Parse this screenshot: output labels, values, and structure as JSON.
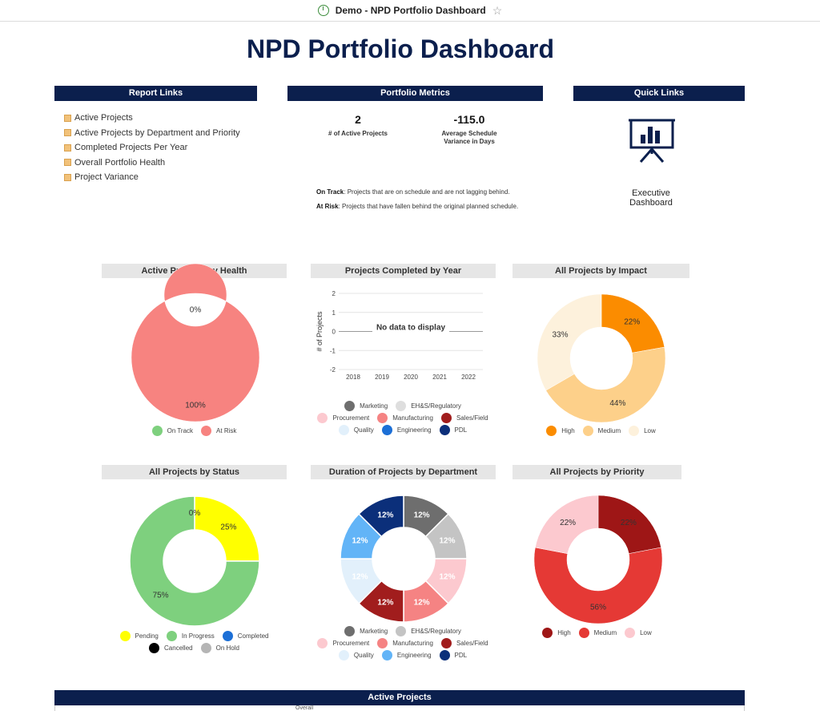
{
  "window": {
    "title": "Demo - NPD Portfolio Dashboard",
    "app_icon": "dashboard-app-icon",
    "star_icon": "star-outline-icon"
  },
  "page": {
    "title": "NPD Portfolio Dashboard"
  },
  "report_links": {
    "header": "Report Links",
    "items": [
      "Active Projects",
      "Active Projects by Department and Priority",
      "Completed Projects Per Year",
      "Overall Portfolio Health",
      "Project Variance"
    ]
  },
  "metrics": {
    "header": "Portfolio Metrics",
    "active_projects": {
      "value": "2",
      "label": "# of Active Projects"
    },
    "schedule_variance": {
      "value": "-115.0",
      "label_line1": "Average Schedule",
      "label_line2": "Variance in Days"
    },
    "definitions": [
      {
        "term": "On Track",
        "text": ": Projects that are on schedule and are not lagging behind."
      },
      {
        "term": "At Risk",
        "text": ": Projects that have fallen behind the original planned schedule."
      }
    ]
  },
  "quick_links": {
    "header": "Quick Links",
    "label_line1": "Executive",
    "label_line2": "Dashboard"
  },
  "colors": {
    "navy": "#0b1f4d",
    "on_track": "#7ed07e",
    "at_risk": "#f78380"
  },
  "chart_data": [
    {
      "type": "pie",
      "title": "Active Projects by Health",
      "categories": [
        "On Track",
        "At Risk"
      ],
      "values": [
        0,
        100
      ],
      "labels": [
        "0%",
        "100%"
      ],
      "colors": [
        "#7ed07e",
        "#f78380"
      ]
    },
    {
      "type": "line",
      "title": "Projects Completed by Year",
      "ylabel": "# of Projects",
      "x": [
        "2018",
        "2019",
        "2020",
        "2021",
        "2022"
      ],
      "y_ticks": [
        "2",
        "1",
        "0",
        "-1",
        "-2"
      ],
      "ylim": [
        -2,
        2
      ],
      "message": "No data to display",
      "legend": [
        {
          "name": "Marketing",
          "color": "#6e6e6e"
        },
        {
          "name": "EH&S/Regulatory",
          "color": "#dedede"
        },
        {
          "name": "Procurement",
          "color": "#fcc9cf"
        },
        {
          "name": "Manufacturing",
          "color": "#f58383"
        },
        {
          "name": "Sales/Field",
          "color": "#a11d1d"
        },
        {
          "name": "Quality",
          "color": "#e2f0fb"
        },
        {
          "name": "Engineering",
          "color": "#1c6fd6"
        },
        {
          "name": "PDL",
          "color": "#0b2f7a"
        }
      ],
      "series": []
    },
    {
      "type": "pie",
      "title": "All Projects by Impact",
      "categories": [
        "High",
        "Medium",
        "Low"
      ],
      "values": [
        22,
        44,
        33
      ],
      "labels": [
        "22%",
        "44%",
        "33%"
      ],
      "colors": [
        "#fb8c00",
        "#fdd08a",
        "#fdf1dc"
      ]
    },
    {
      "type": "pie",
      "title": "All Projects by Status",
      "categories": [
        "Pending",
        "In Progress",
        "Completed",
        "Cancelled",
        "On Hold"
      ],
      "values": [
        25,
        75,
        0,
        0,
        0
      ],
      "labels": [
        "25%",
        "75%",
        "0%"
      ],
      "colors": [
        "#ffff00",
        "#7ed07e",
        "#1c6fd6",
        "#000000",
        "#b5b5b5"
      ]
    },
    {
      "type": "pie",
      "title": "Duration of Projects by Department",
      "categories": [
        "Marketing",
        "EH&S/Regulatory",
        "Procurement",
        "Manufacturing",
        "Sales/Field",
        "Quality",
        "Engineering",
        "PDL"
      ],
      "values": [
        12,
        12,
        12,
        12,
        12,
        12,
        12,
        12
      ],
      "labels": [
        "12%",
        "12%",
        "12%",
        "12%",
        "12%",
        "12%",
        "12%",
        "12%"
      ],
      "colors": [
        "#6e6e6e",
        "#c4c4c4",
        "#fcc9cf",
        "#f58383",
        "#a11d1d",
        "#e2f0fb",
        "#62b4f7",
        "#0b2f7a"
      ]
    },
    {
      "type": "pie",
      "title": "All Projects by Priority",
      "categories": [
        "High",
        "Medium",
        "Low"
      ],
      "values": [
        22,
        56,
        22
      ],
      "labels": [
        "22%",
        "56%",
        "22%"
      ],
      "colors": [
        "#9e1616",
        "#e53935",
        "#fcc9cf"
      ]
    }
  ],
  "active_projects_table": {
    "header": "Active Projects",
    "first_visible_header": "Overall"
  }
}
